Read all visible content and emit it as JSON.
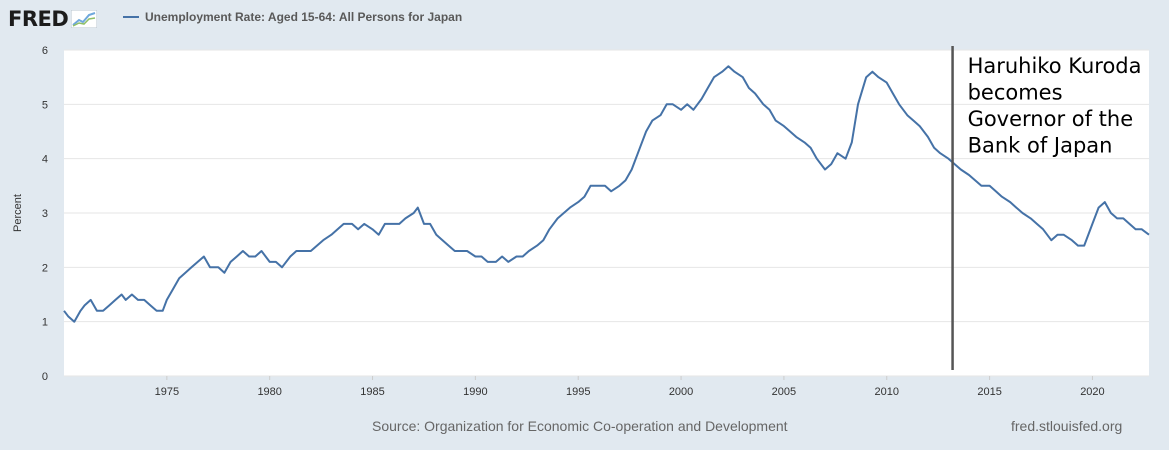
{
  "brand": {
    "logo_text": "FRED",
    "logo_icon": "line-graph-icon"
  },
  "colors": {
    "series": "#4572a7",
    "annotation_line": "#555555",
    "background": "#e1e9f0",
    "plot_bg": "#ffffff",
    "grid": "#e6e6e6"
  },
  "footer": {
    "source": "Source: Organization for Economic Co-operation and Development",
    "site": "fred.stlouisfed.org"
  },
  "chart_data": {
    "type": "line",
    "title": "",
    "xlabel": "",
    "ylabel": "Percent",
    "xlim": [
      1970.0,
      2022.75
    ],
    "ylim": [
      0,
      6
    ],
    "yticks": [
      0,
      1,
      2,
      3,
      4,
      5,
      6
    ],
    "xticks": [
      1975,
      1980,
      1985,
      1990,
      1995,
      2000,
      2005,
      2010,
      2015,
      2020
    ],
    "grid": true,
    "legend": "top-left",
    "series": [
      {
        "name": "Unemployment Rate: Aged 15-64: All Persons for Japan",
        "x": [
          1970.0,
          1970.2,
          1970.5,
          1970.8,
          1971.0,
          1971.3,
          1971.6,
          1971.9,
          1972.2,
          1972.5,
          1972.8,
          1973.0,
          1973.3,
          1973.6,
          1973.9,
          1974.2,
          1974.5,
          1974.8,
          1975.0,
          1975.3,
          1975.6,
          1975.9,
          1976.2,
          1976.5,
          1976.8,
          1977.1,
          1977.5,
          1977.8,
          1978.1,
          1978.4,
          1978.7,
          1979.0,
          1979.3,
          1979.6,
          1980.0,
          1980.3,
          1980.6,
          1981.0,
          1981.3,
          1981.6,
          1982.0,
          1982.3,
          1982.6,
          1983.0,
          1983.3,
          1983.6,
          1984.0,
          1984.3,
          1984.6,
          1985.0,
          1985.3,
          1985.6,
          1986.0,
          1986.3,
          1986.6,
          1987.0,
          1987.2,
          1987.5,
          1987.8,
          1988.1,
          1988.4,
          1988.7,
          1989.0,
          1989.3,
          1989.6,
          1990.0,
          1990.3,
          1990.6,
          1991.0,
          1991.3,
          1991.6,
          1992.0,
          1992.3,
          1992.6,
          1993.0,
          1993.3,
          1993.6,
          1994.0,
          1994.3,
          1994.6,
          1995.0,
          1995.3,
          1995.6,
          1996.0,
          1996.3,
          1996.6,
          1997.0,
          1997.3,
          1997.6,
          1998.0,
          1998.3,
          1998.6,
          1999.0,
          1999.3,
          1999.6,
          2000.0,
          2000.3,
          2000.6,
          2001.0,
          2001.3,
          2001.6,
          2002.0,
          2002.3,
          2002.6,
          2003.0,
          2003.3,
          2003.6,
          2004.0,
          2004.3,
          2004.6,
          2005.0,
          2005.3,
          2005.6,
          2006.0,
          2006.3,
          2006.6,
          2007.0,
          2007.3,
          2007.6,
          2008.0,
          2008.3,
          2008.6,
          2009.0,
          2009.3,
          2009.6,
          2010.0,
          2010.3,
          2010.6,
          2011.0,
          2011.3,
          2011.6,
          2012.0,
          2012.3,
          2012.6,
          2013.0,
          2013.3,
          2013.6,
          2014.0,
          2014.3,
          2014.6,
          2015.0,
          2015.3,
          2015.6,
          2016.0,
          2016.3,
          2016.6,
          2017.0,
          2017.3,
          2017.6,
          2018.0,
          2018.3,
          2018.6,
          2019.0,
          2019.3,
          2019.6,
          2020.0,
          2020.3,
          2020.6,
          2020.9,
          2021.2,
          2021.5,
          2021.8,
          2022.1,
          2022.4,
          2022.75
        ],
        "y": [
          1.2,
          1.1,
          1.0,
          1.2,
          1.3,
          1.4,
          1.2,
          1.2,
          1.3,
          1.4,
          1.5,
          1.4,
          1.5,
          1.4,
          1.4,
          1.3,
          1.2,
          1.2,
          1.4,
          1.6,
          1.8,
          1.9,
          2.0,
          2.1,
          2.2,
          2.0,
          2.0,
          1.9,
          2.1,
          2.2,
          2.3,
          2.2,
          2.2,
          2.3,
          2.1,
          2.1,
          2.0,
          2.2,
          2.3,
          2.3,
          2.3,
          2.4,
          2.5,
          2.6,
          2.7,
          2.8,
          2.8,
          2.7,
          2.8,
          2.7,
          2.6,
          2.8,
          2.8,
          2.8,
          2.9,
          3.0,
          3.1,
          2.8,
          2.8,
          2.6,
          2.5,
          2.4,
          2.3,
          2.3,
          2.3,
          2.2,
          2.2,
          2.1,
          2.1,
          2.2,
          2.1,
          2.2,
          2.2,
          2.3,
          2.4,
          2.5,
          2.7,
          2.9,
          3.0,
          3.1,
          3.2,
          3.3,
          3.5,
          3.5,
          3.5,
          3.4,
          3.5,
          3.6,
          3.8,
          4.2,
          4.5,
          4.7,
          4.8,
          5.0,
          5.0,
          4.9,
          5.0,
          4.9,
          5.1,
          5.3,
          5.5,
          5.6,
          5.7,
          5.6,
          5.5,
          5.3,
          5.2,
          5.0,
          4.9,
          4.7,
          4.6,
          4.5,
          4.4,
          4.3,
          4.2,
          4.0,
          3.8,
          3.9,
          4.1,
          4.0,
          4.3,
          5.0,
          5.5,
          5.6,
          5.5,
          5.4,
          5.2,
          5.0,
          4.8,
          4.7,
          4.6,
          4.4,
          4.2,
          4.1,
          4.0,
          3.9,
          3.8,
          3.7,
          3.6,
          3.5,
          3.5,
          3.4,
          3.3,
          3.2,
          3.1,
          3.0,
          2.9,
          2.8,
          2.7,
          2.5,
          2.6,
          2.6,
          2.5,
          2.4,
          2.4,
          2.8,
          3.1,
          3.2,
          3.0,
          2.9,
          2.9,
          2.8,
          2.7,
          2.7,
          2.6
        ]
      }
    ],
    "annotations": [
      {
        "x": 2013.2,
        "text": "Haruhiko Kuroda becomes Governor of the Bank of Japan"
      }
    ]
  }
}
